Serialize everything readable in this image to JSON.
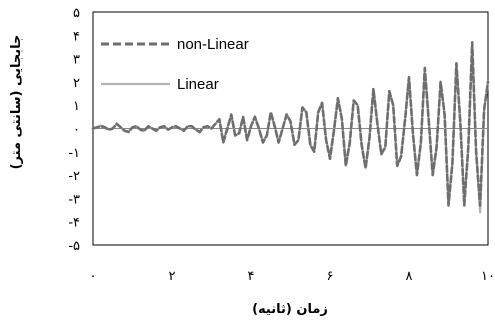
{
  "chart_data": {
    "type": "line",
    "xlabel": "زمان (ثانیه)",
    "ylabel": "جابجایی (سانتی متر)",
    "xlim": [
      0,
      10
    ],
    "ylim": [
      -5,
      5
    ],
    "x_ticks": [
      0,
      2,
      4,
      6,
      8,
      10
    ],
    "x_tick_labels": [
      "۰",
      "۲",
      "۴",
      "۶",
      "۸",
      "۱۰"
    ],
    "y_ticks": [
      5,
      4,
      3,
      2,
      1,
      0,
      -1,
      -2,
      -3,
      -4,
      -5
    ],
    "y_tick_labels": [
      "۵",
      "۴",
      "۳",
      "۲",
      "۱",
      "۰",
      "-۱",
      "-۲",
      "-۳",
      "-۴",
      "-۵"
    ],
    "grid": false,
    "legend_position": "top-left",
    "series": [
      {
        "name": "non-Linear",
        "color": "#6e6e6e",
        "style": "dashed",
        "x": [
          0,
          0.1,
          0.2,
          0.3,
          0.4,
          0.5,
          0.6,
          0.7,
          0.8,
          0.9,
          1.0,
          1.1,
          1.2,
          1.3,
          1.4,
          1.5,
          1.6,
          1.7,
          1.8,
          1.9,
          2.0,
          2.1,
          2.2,
          2.3,
          2.4,
          2.5,
          2.6,
          2.7,
          2.8,
          2.9,
          3.0,
          3.1,
          3.2,
          3.3,
          3.4,
          3.5,
          3.6,
          3.7,
          3.8,
          3.9,
          4.0,
          4.1,
          4.2,
          4.3,
          4.4,
          4.5,
          4.6,
          4.7,
          4.8,
          4.9,
          5.0,
          5.1,
          5.2,
          5.3,
          5.4,
          5.5,
          5.6,
          5.7,
          5.8,
          5.9,
          6.0,
          6.1,
          6.2,
          6.3,
          6.4,
          6.5,
          6.6,
          6.7,
          6.8,
          6.9,
          7.0,
          7.1,
          7.2,
          7.3,
          7.4,
          7.5,
          7.6,
          7.7,
          7.8,
          7.9,
          8.0,
          8.1,
          8.2,
          8.3,
          8.4,
          8.5,
          8.6,
          8.7,
          8.8,
          8.9,
          9.0,
          9.1,
          9.2,
          9.3,
          9.4,
          9.5,
          9.6,
          9.7,
          9.8,
          9.9,
          10.0
        ],
        "y": [
          0,
          0.05,
          0.1,
          0.05,
          -0.05,
          0,
          0.2,
          0.05,
          -0.1,
          -0.15,
          0.05,
          0.1,
          -0.05,
          -0.1,
          0.1,
          0.0,
          -0.1,
          0.05,
          0.1,
          -0.05,
          0.05,
          0.1,
          0.0,
          -0.1,
          0.1,
          0.1,
          -0.05,
          -0.15,
          0.05,
          0.1,
          0.0,
          0.2,
          0.4,
          -0.6,
          0.0,
          0.6,
          -0.3,
          -0.2,
          0.5,
          -0.5,
          0.1,
          0.5,
          0.0,
          -0.6,
          -0.3,
          0.7,
          0.1,
          -0.6,
          0.0,
          0.6,
          0.3,
          -0.7,
          -0.5,
          0.9,
          0.7,
          -0.7,
          -1.0,
          0.7,
          1.1,
          -0.5,
          -1.3,
          -0.1,
          1.3,
          0.4,
          -1.6,
          -0.6,
          1.2,
          1.0,
          -0.7,
          -1.7,
          -0.4,
          1.7,
          0.2,
          -1.1,
          -0.8,
          1.6,
          1.0,
          -1.6,
          -1.2,
          0.4,
          2.2,
          -0.2,
          -2.0,
          -0.6,
          2.6,
          0.3,
          -2.0,
          -0.8,
          2.0,
          0.6,
          -3.3,
          -1.5,
          2.8,
          0.2,
          -3.3,
          -0.8,
          3.7,
          -1.0,
          -3.3,
          0.8,
          2.0
        ]
      },
      {
        "name": "Linear",
        "color": "#b4b4b4",
        "style": "solid",
        "x": [
          0,
          0.1,
          0.2,
          0.3,
          0.4,
          0.5,
          0.6,
          0.7,
          0.8,
          0.9,
          1.0,
          1.1,
          1.2,
          1.3,
          1.4,
          1.5,
          1.6,
          1.7,
          1.8,
          1.9,
          2.0,
          2.1,
          2.2,
          2.3,
          2.4,
          2.5,
          2.6,
          2.7,
          2.8,
          2.9,
          3.0,
          3.1,
          3.2,
          3.3,
          3.4,
          3.5,
          3.6,
          3.7,
          3.8,
          3.9,
          4.0,
          4.1,
          4.2,
          4.3,
          4.4,
          4.5,
          4.6,
          4.7,
          4.8,
          4.9,
          5.0,
          5.1,
          5.2,
          5.3,
          5.4,
          5.5,
          5.6,
          5.7,
          5.8,
          5.9,
          6.0,
          6.1,
          6.2,
          6.3,
          6.4,
          6.5,
          6.6,
          6.7,
          6.8,
          6.9,
          7.0,
          7.1,
          7.2,
          7.3,
          7.4,
          7.5,
          7.6,
          7.7,
          7.8,
          7.9,
          8.0,
          8.1,
          8.2,
          8.3,
          8.4,
          8.5,
          8.6,
          8.7,
          8.8,
          8.9,
          9.0,
          9.1,
          9.2,
          9.3,
          9.4,
          9.5,
          9.6,
          9.7,
          9.8,
          9.9,
          10.0
        ],
        "y": [
          0,
          0.05,
          0.12,
          0.05,
          -0.05,
          0,
          0.18,
          0.05,
          -0.1,
          -0.12,
          0.05,
          0.1,
          -0.05,
          -0.1,
          0.1,
          0.0,
          -0.1,
          0.05,
          0.1,
          -0.05,
          0.05,
          0.1,
          0.0,
          -0.1,
          0.1,
          0.1,
          -0.05,
          -0.12,
          0.05,
          0.1,
          0.0,
          0.2,
          0.35,
          -0.55,
          0.0,
          0.55,
          -0.3,
          -0.2,
          0.5,
          -0.5,
          0.1,
          0.5,
          0.0,
          -0.55,
          -0.3,
          0.65,
          0.1,
          -0.6,
          0.0,
          0.6,
          0.3,
          -0.7,
          -0.5,
          0.9,
          0.7,
          -0.7,
          -1.0,
          0.7,
          1.1,
          -0.5,
          -1.2,
          -0.1,
          1.3,
          0.4,
          -1.6,
          -0.6,
          1.2,
          1.0,
          -0.7,
          -1.7,
          -0.4,
          1.7,
          0.2,
          -1.1,
          -0.8,
          1.6,
          1.0,
          -1.6,
          -1.2,
          0.4,
          2.2,
          -0.2,
          -2.0,
          -0.6,
          2.5,
          0.3,
          -2.0,
          -0.8,
          2.0,
          0.6,
          -3.2,
          -1.5,
          2.8,
          0.2,
          -3.2,
          -0.8,
          3.5,
          -1.0,
          -3.6,
          0.8,
          2.0
        ]
      }
    ]
  }
}
